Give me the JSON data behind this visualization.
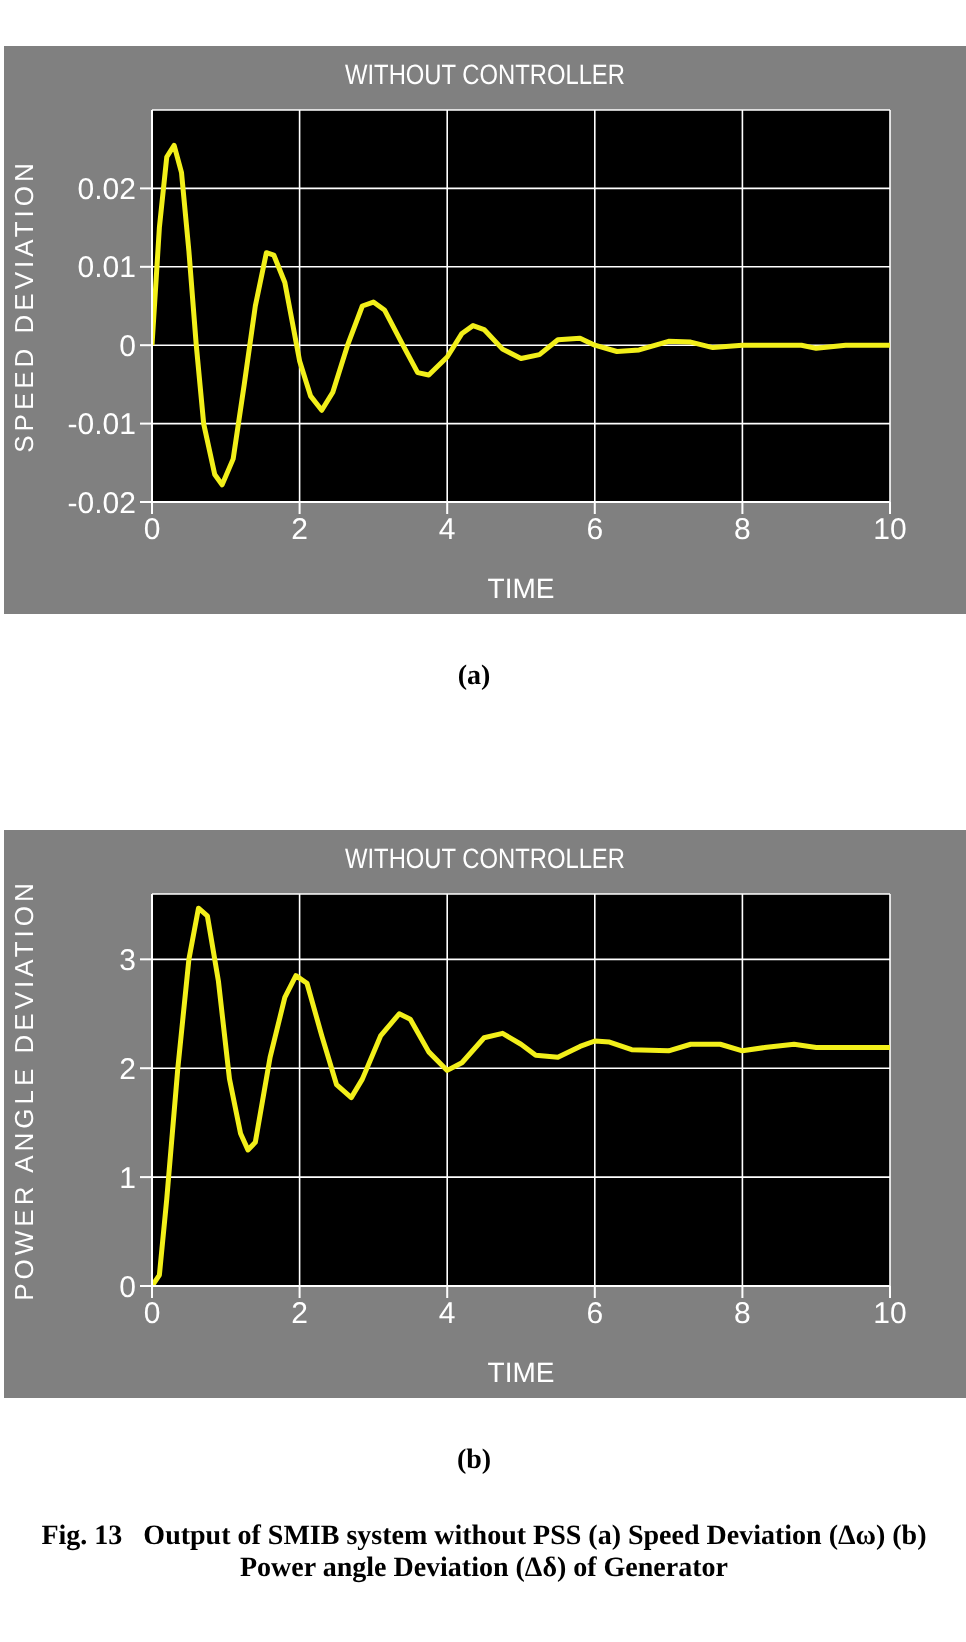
{
  "chart_data": [
    {
      "type": "line",
      "title": "WITHOUT CONTROLLER",
      "xlabel": "TIME",
      "ylabel": "SPEED DEVIATION",
      "xlim": [
        0,
        10
      ],
      "xticks": [
        0,
        2,
        4,
        6,
        8,
        10
      ],
      "ylim": [
        -0.02,
        0.03
      ],
      "yticks": [
        -0.02,
        -0.01,
        0,
        0.01,
        0.02
      ],
      "grid": true,
      "marker": "none",
      "line_style": "solid",
      "annotations": [
        "(a)"
      ],
      "series": [
        {
          "color": "#f2ef1a",
          "x": [
            0,
            0.1,
            0.2,
            0.3,
            0.4,
            0.5,
            0.6,
            0.7,
            0.85,
            0.95,
            1.1,
            1.25,
            1.4,
            1.55,
            1.65,
            1.8,
            2.0,
            2.15,
            2.3,
            2.45,
            2.65,
            2.85,
            3.0,
            3.15,
            3.4,
            3.6,
            3.75,
            4.0,
            4.2,
            4.35,
            4.5,
            4.75,
            5.0,
            5.25,
            5.5,
            5.8,
            6.0,
            6.3,
            6.6,
            7.0,
            7.3,
            7.6,
            8.0,
            8.8,
            9.0,
            9.4,
            10
          ],
          "values": [
            0,
            0.015,
            0.024,
            0.0255,
            0.022,
            0.012,
            0.0,
            -0.01,
            -0.0165,
            -0.0178,
            -0.0145,
            -0.005,
            0.005,
            0.0118,
            0.0115,
            0.008,
            -0.002,
            -0.0065,
            -0.0083,
            -0.006,
            0.0,
            0.005,
            0.0055,
            0.0045,
            0.0,
            -0.0035,
            -0.0038,
            -0.0015,
            0.0015,
            0.0025,
            0.002,
            -0.0005,
            -0.0017,
            -0.0012,
            0.0007,
            0.0009,
            0.0,
            -0.0008,
            -0.0006,
            0.0005,
            0.0004,
            -0.0003,
            0.0,
            0.0,
            -0.0004,
            0.0,
            0
          ]
        }
      ]
    },
    {
      "type": "line",
      "title": "WITHOUT CONTROLLER",
      "xlabel": "TIME",
      "ylabel": "POWER ANGLE DEVIATION",
      "xlim": [
        0,
        10
      ],
      "xticks": [
        0,
        2,
        4,
        6,
        8,
        10
      ],
      "ylim": [
        0,
        3.6
      ],
      "yticks": [
        0,
        1,
        2,
        3
      ],
      "grid": true,
      "marker": "none",
      "line_style": "solid",
      "annotations": [
        "(b)",
        "Fig. 13   Output of SMIB system without PSS (a) Speed Deviation (Δω) (b) Power angle Deviation (Δδ) of Generator"
      ],
      "series": [
        {
          "color": "#f2ef1a",
          "x": [
            0,
            0.1,
            0.2,
            0.35,
            0.5,
            0.63,
            0.75,
            0.9,
            1.05,
            1.2,
            1.3,
            1.4,
            1.6,
            1.8,
            1.95,
            2.1,
            2.3,
            2.5,
            2.7,
            2.85,
            3.1,
            3.35,
            3.5,
            3.75,
            4.0,
            4.2,
            4.5,
            4.75,
            5.0,
            5.2,
            5.5,
            5.8,
            6.0,
            6.2,
            6.5,
            7.0,
            7.3,
            7.7,
            8.0,
            8.3,
            8.7,
            9.0,
            10
          ],
          "values": [
            0,
            0.1,
            0.8,
            2.0,
            3.0,
            3.47,
            3.4,
            2.8,
            1.9,
            1.4,
            1.25,
            1.32,
            2.1,
            2.65,
            2.85,
            2.78,
            2.3,
            1.85,
            1.73,
            1.9,
            2.3,
            2.5,
            2.45,
            2.15,
            1.98,
            2.05,
            2.28,
            2.32,
            2.22,
            2.12,
            2.1,
            2.2,
            2.25,
            2.24,
            2.17,
            2.16,
            2.22,
            2.22,
            2.16,
            2.19,
            2.22,
            2.19,
            2.19
          ]
        }
      ]
    }
  ]
}
